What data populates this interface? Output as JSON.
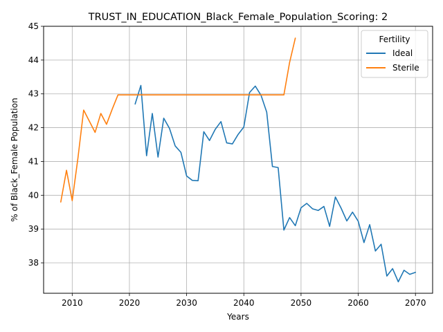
{
  "chart_data": {
    "type": "line",
    "title": "TRUST_IN_EDUCATION_Black_Female_Population_Scoring: 2",
    "xlabel": "Years",
    "ylabel": "% of Black_Female Population",
    "xlim": [
      2005,
      2073
    ],
    "ylim": [
      37.1,
      45
    ],
    "xticks": [
      2010,
      2020,
      2030,
      2040,
      2050,
      2060,
      2070
    ],
    "yticks": [
      38,
      39,
      40,
      41,
      42,
      43,
      44,
      45
    ],
    "grid": true,
    "legend": {
      "title": "Fertility",
      "placement": "top-right"
    },
    "series": [
      {
        "name": "Ideal",
        "color": "#1f77b4",
        "points": [
          [
            2021,
            42.7
          ],
          [
            2022,
            43.25
          ],
          [
            2023,
            41.17
          ],
          [
            2024,
            42.42
          ],
          [
            2025,
            41.13
          ],
          [
            2026,
            42.28
          ],
          [
            2027,
            41.98
          ],
          [
            2028,
            41.46
          ],
          [
            2029,
            41.27
          ],
          [
            2030,
            40.57
          ],
          [
            2031,
            40.44
          ],
          [
            2032,
            40.43
          ],
          [
            2033,
            41.88
          ],
          [
            2034,
            41.62
          ],
          [
            2035,
            41.95
          ],
          [
            2036,
            42.18
          ],
          [
            2037,
            41.55
          ],
          [
            2038,
            41.52
          ],
          [
            2039,
            41.8
          ],
          [
            2040,
            42.02
          ],
          [
            2041,
            43.04
          ],
          [
            2042,
            43.23
          ],
          [
            2043,
            42.96
          ],
          [
            2044,
            42.46
          ],
          [
            2045,
            40.85
          ],
          [
            2046,
            40.82
          ],
          [
            2047,
            38.97
          ],
          [
            2048,
            39.34
          ],
          [
            2049,
            39.1
          ],
          [
            2050,
            39.63
          ],
          [
            2051,
            39.76
          ],
          [
            2052,
            39.6
          ],
          [
            2053,
            39.55
          ],
          [
            2054,
            39.67
          ],
          [
            2055,
            39.08
          ],
          [
            2056,
            39.95
          ],
          [
            2057,
            39.62
          ],
          [
            2058,
            39.24
          ],
          [
            2059,
            39.5
          ],
          [
            2060,
            39.23
          ],
          [
            2061,
            38.6
          ],
          [
            2062,
            39.13
          ],
          [
            2063,
            38.35
          ],
          [
            2064,
            38.55
          ],
          [
            2065,
            37.61
          ],
          [
            2066,
            37.83
          ],
          [
            2067,
            37.44
          ],
          [
            2068,
            37.78
          ],
          [
            2069,
            37.66
          ],
          [
            2070,
            37.72
          ]
        ]
      },
      {
        "name": "Sterile",
        "color": "#ff7f0e",
        "points": [
          [
            2008,
            39.8
          ],
          [
            2009,
            40.74
          ],
          [
            2010,
            39.84
          ],
          [
            2011,
            41.1
          ],
          [
            2012,
            42.52
          ],
          [
            2013,
            42.19
          ],
          [
            2014,
            41.86
          ],
          [
            2015,
            42.42
          ],
          [
            2016,
            42.1
          ],
          [
            2017,
            42.55
          ],
          [
            2018,
            42.97
          ],
          [
            2019,
            42.97
          ],
          [
            2020,
            42.97
          ],
          [
            2025,
            42.97
          ],
          [
            2030,
            42.97
          ],
          [
            2035,
            42.97
          ],
          [
            2040,
            42.97
          ],
          [
            2045,
            42.97
          ],
          [
            2046,
            42.97
          ],
          [
            2047,
            42.97
          ],
          [
            2048,
            43.93
          ],
          [
            2049,
            44.65
          ]
        ]
      }
    ]
  }
}
